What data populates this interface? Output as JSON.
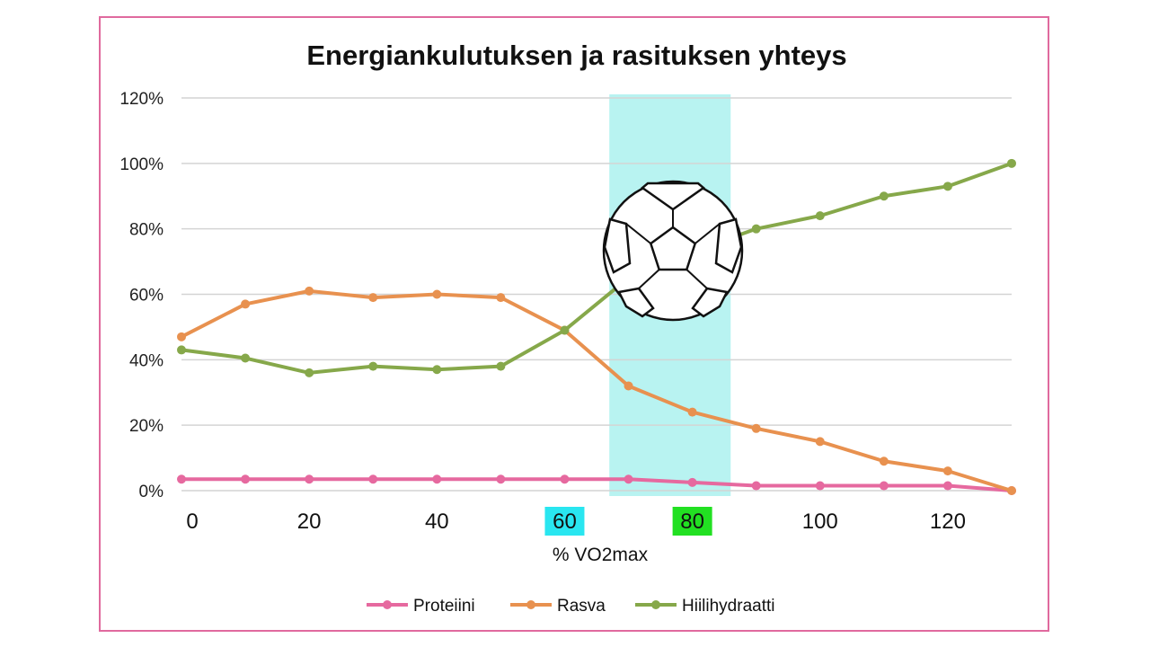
{
  "chart_data": {
    "type": "line",
    "title": "Energiankulutuksen ja rasituksen yhteys",
    "xlabel": "% VO2max",
    "ylabel": "",
    "x_ticks": [
      0,
      20,
      40,
      60,
      80,
      100,
      120
    ],
    "highlighted_x_ticks": [
      {
        "value": 60,
        "color": "#29e6f0"
      },
      {
        "value": 80,
        "color": "#22e022"
      }
    ],
    "y_ticks": [
      "0%",
      "20%",
      "40%",
      "60%",
      "80%",
      "100%",
      "120%"
    ],
    "xlim": [
      0,
      130
    ],
    "ylim": [
      0,
      120
    ],
    "grid": true,
    "legend_position": "bottom",
    "highlight_band": {
      "x_range": [
        67,
        86
      ],
      "color": "#b8f3f1"
    },
    "icon": "soccer-ball-icon",
    "x": [
      0,
      10,
      20,
      30,
      40,
      50,
      60,
      70,
      80,
      90,
      100,
      110,
      120,
      130
    ],
    "series": [
      {
        "name": "Proteiini",
        "color": "#e6699f",
        "values": [
          3.5,
          3.5,
          3.5,
          3.5,
          3.5,
          3.5,
          3.5,
          3.5,
          2.5,
          1.5,
          1.5,
          1.5,
          1.5,
          0
        ]
      },
      {
        "name": "Rasva",
        "color": "#e8914f",
        "values": [
          47,
          57,
          61,
          59,
          60,
          59,
          49,
          32,
          24,
          19,
          15,
          9,
          6,
          0
        ]
      },
      {
        "name": "Hiilihydraatti",
        "color": "#86a84a",
        "values": [
          43,
          40.5,
          36,
          38,
          37,
          38,
          49,
          65,
          73,
          80,
          84,
          90,
          93,
          100
        ]
      }
    ]
  }
}
